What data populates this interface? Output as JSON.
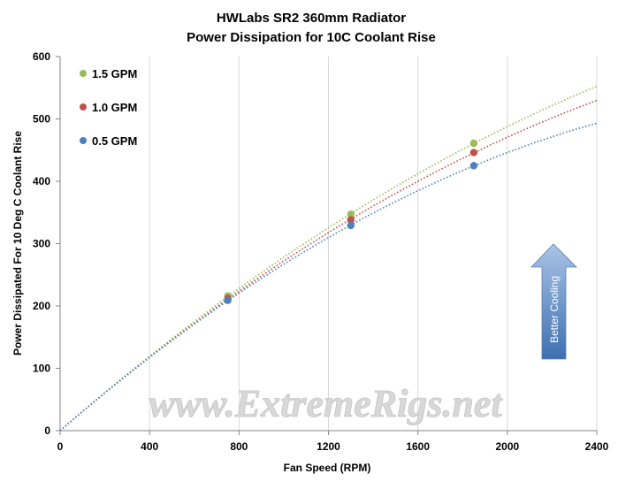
{
  "chart_data": {
    "type": "scatter",
    "title": "HWLabs  SR2 360mm Radiator",
    "subtitle": "Power Dissipation for 10C Coolant  Rise",
    "xlabel": "Fan Speed (RPM)",
    "ylabel": "Power Dissipated For 10 Deg C Coolant Rise",
    "xlim": [
      0,
      2400
    ],
    "ylim": [
      0,
      600
    ],
    "x_ticks": [
      0,
      400,
      800,
      1200,
      1600,
      2000,
      2400
    ],
    "y_ticks": [
      0,
      100,
      200,
      300,
      400,
      500,
      600
    ],
    "grid": "vertical",
    "legend_position": "top-left",
    "trendline": "polynomial, dotted",
    "series": [
      {
        "name": "1.5 GPM",
        "color": "#9bbb59",
        "x": [
          750,
          1300,
          1850
        ],
        "y": [
          216,
          347,
          461
        ]
      },
      {
        "name": "1.0 GPM",
        "color": "#c0504d",
        "x": [
          750,
          1300,
          1850
        ],
        "y": [
          212,
          338,
          446
        ]
      },
      {
        "name": "0.5 GPM",
        "color": "#4f81bd",
        "x": [
          750,
          1300,
          1850
        ],
        "y": [
          209,
          329,
          425
        ]
      }
    ],
    "annotation": "Better Cooling",
    "watermark": "www.ExtremeRigs.net"
  }
}
